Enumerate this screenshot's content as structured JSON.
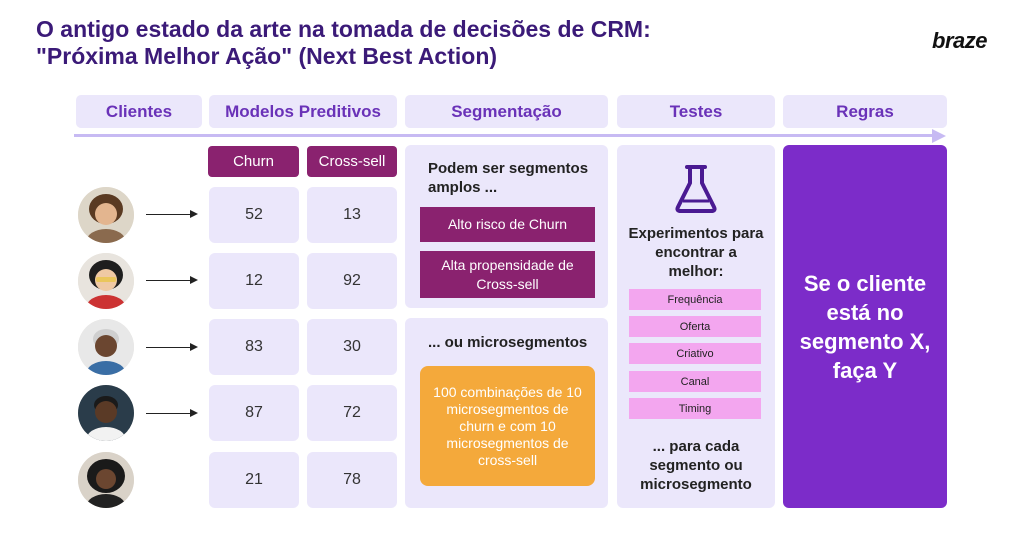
{
  "title": {
    "line1": "O antigo estado da arte na tomada de decisões de CRM:",
    "line2": "\"Próxima Melhor Ação\" (Next Best Action)"
  },
  "logo": "braze",
  "headers": [
    "Clientes",
    "Modelos Preditivos",
    "Segmentação",
    "Testes",
    "Regras"
  ],
  "models": {
    "churn_label": "Churn",
    "crosssell_label": "Cross-sell",
    "rows": [
      {
        "churn": "52",
        "crosssell": "13"
      },
      {
        "churn": "12",
        "crosssell": "92"
      },
      {
        "churn": "83",
        "crosssell": "30"
      },
      {
        "churn": "87",
        "crosssell": "72"
      },
      {
        "churn": "21",
        "crosssell": "78"
      }
    ]
  },
  "segmentation": {
    "broad_heading": "Podem ser segmentos amplos ...",
    "broad_items": [
      "Alto risco de Churn",
      "Alta propensidade de Cross-sell"
    ],
    "micro_heading": "... ou microsegmentos",
    "micro_text": "100 combinações de 10 microsegmentos de churn e com 10 microsegmentos de cross-sell"
  },
  "tests": {
    "heading": "Experimentos para encontrar a melhor:",
    "items": [
      "Frequência",
      "Oferta",
      "Criativo",
      "Canal",
      "Timing"
    ],
    "footer": "... para cada segmento ou microsegmento",
    "icon": "flask-icon"
  },
  "rules": {
    "text": "Se o cliente está no segmento X, faça Y"
  },
  "colors": {
    "title": "#3b1a78",
    "header_bg": "#ebe7fb",
    "header_text": "#6a32b8",
    "magenta": "#8a226f",
    "orange": "#f4a93b",
    "pink": "#f3a6ef",
    "purple": "#7c2cc9"
  }
}
